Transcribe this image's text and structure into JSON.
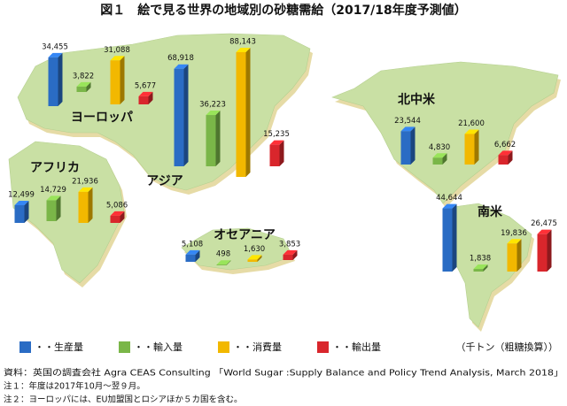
{
  "chart_data": {
    "type": "bar",
    "title": "図１　絵で見る世界の地域別の砂糖需給（2017/18年度予測値）",
    "categories": [
      "ヨーロッパ",
      "アジア",
      "アフリカ",
      "オセアニア",
      "北中米",
      "南米"
    ],
    "series": [
      {
        "name": "・・生産量",
        "color": "#2a6cc4",
        "values": [
          34455,
          68918,
          12499,
          5108,
          23544,
          44644
        ],
        "value_labels": [
          "34,455",
          "68,918",
          "12,499",
          "5,108",
          "23,544",
          "44,644"
        ]
      },
      {
        "name": "・・輸入量",
        "color": "#7ab648",
        "values": [
          3822,
          36223,
          14729,
          498,
          4830,
          1838
        ],
        "value_labels": [
          "3,822",
          "36,223",
          "14,729",
          "498",
          "4,830",
          "1,838"
        ]
      },
      {
        "name": "・・消費量",
        "color": "#f2b800",
        "values": [
          31088,
          88143,
          21936,
          1630,
          21600,
          19836
        ],
        "value_labels": [
          "31,088",
          "88,143",
          "21,936",
          "1,630",
          "21,600",
          "19,836"
        ]
      },
      {
        "name": "・・輸出量",
        "color": "#d9262c",
        "values": [
          5677,
          15235,
          5086,
          3853,
          6662,
          26475
        ],
        "value_labels": [
          "5,677",
          "15,235",
          "5,086",
          "3,853",
          "6,662",
          "26,475"
        ]
      }
    ],
    "unit_note": "（千トン（粗糖換算））",
    "notes": [
      "資料：英国の調査会社 Agra CEAS Consulting 「World Sugar :Supply Balance and Policy Trend Analysis, March 2018」",
      "注１：年度は2017年10月～翌９月。",
      "注２：ヨーロッパには、EU加盟国とロシアほか５カ国を含む。"
    ]
  }
}
